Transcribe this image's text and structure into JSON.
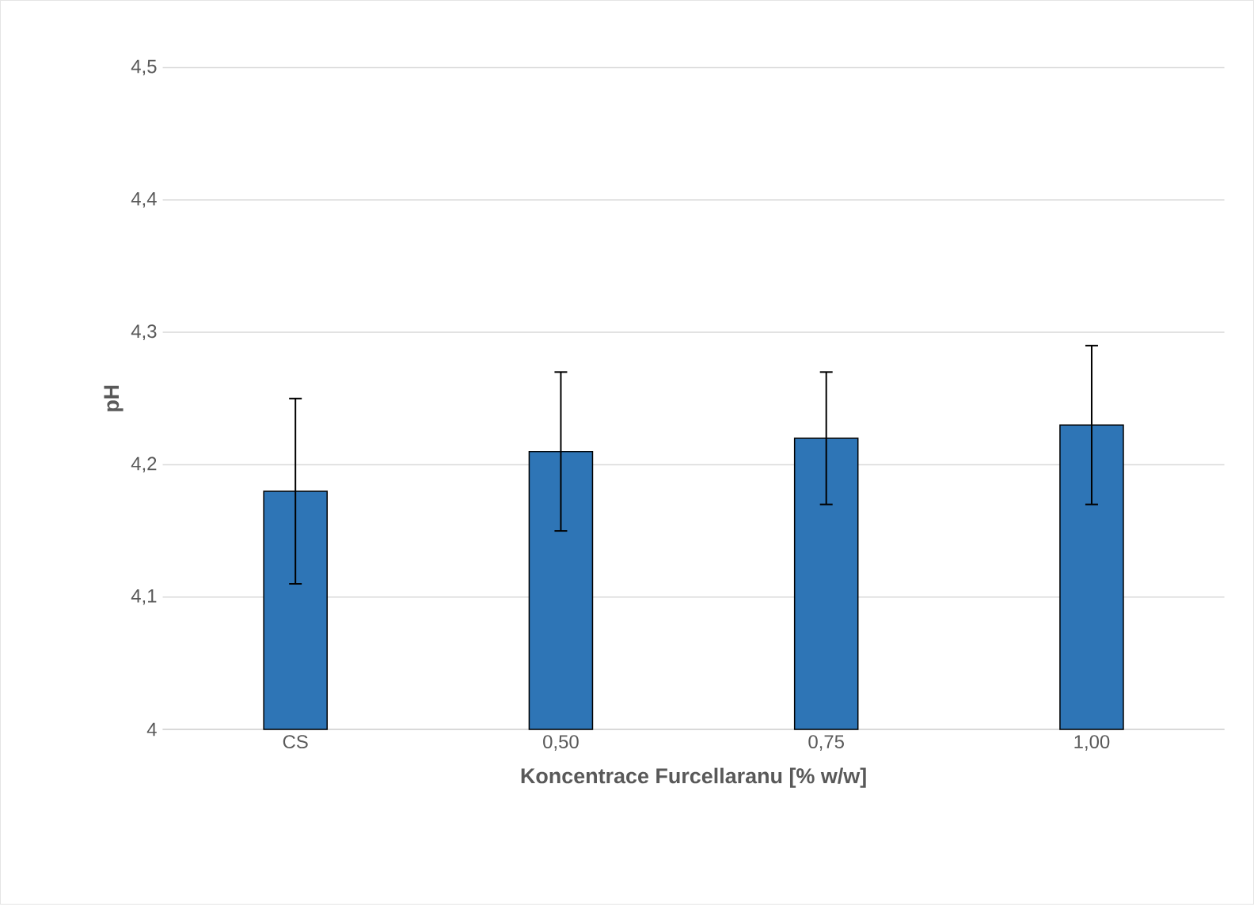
{
  "chart_data": {
    "type": "bar",
    "xlabel": "Koncentrace Furcellaranu [% w/w]",
    "ylabel": "pH",
    "categories": [
      "CS",
      "0,50",
      "0,75",
      "1,00"
    ],
    "values": [
      4.18,
      4.21,
      4.22,
      4.23
    ],
    "errors": [
      0.07,
      0.06,
      0.05,
      0.06
    ],
    "color": "#2e75b6",
    "ylim": [
      4,
      4.5
    ],
    "yticks": [
      4,
      {
        "value": 4.1,
        "label": "4,1"
      },
      {
        "value": 4.2,
        "label": "4,2"
      },
      {
        "value": 4.3,
        "label": "4,3"
      },
      {
        "value": 4.4,
        "label": "4,4"
      },
      {
        "value": 4.5,
        "label": "4,5"
      }
    ],
    "grid": "y",
    "legend": false
  }
}
